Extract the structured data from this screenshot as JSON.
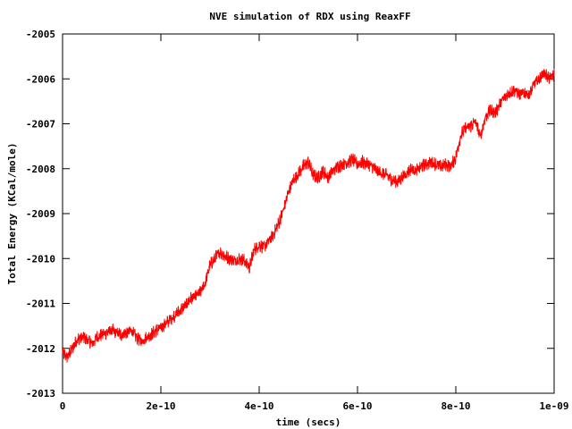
{
  "chart_data": {
    "type": "line",
    "title": "NVE simulation of RDX using ReaxFF",
    "xlabel": "time (secs)",
    "ylabel": "Total Energy (KCal/mole)",
    "xlim": [
      0,
      1e-09
    ],
    "ylim": [
      -2013,
      -2005
    ],
    "x_ticks": [
      {
        "value": 0,
        "label": "0"
      },
      {
        "value": 2e-10,
        "label": "2e-10"
      },
      {
        "value": 4e-10,
        "label": "4e-10"
      },
      {
        "value": 6e-10,
        "label": "6e-10"
      },
      {
        "value": 8e-10,
        "label": "8e-10"
      },
      {
        "value": 1e-09,
        "label": "1e-09"
      }
    ],
    "y_ticks": [
      {
        "value": -2013,
        "label": "-2013"
      },
      {
        "value": -2012,
        "label": "-2012"
      },
      {
        "value": -2011,
        "label": "-2011"
      },
      {
        "value": -2010,
        "label": "-2010"
      },
      {
        "value": -2009,
        "label": "-2009"
      },
      {
        "value": -2008,
        "label": "-2008"
      },
      {
        "value": -2007,
        "label": "-2007"
      },
      {
        "value": -2006,
        "label": "-2006"
      },
      {
        "value": -2005,
        "label": "-2005"
      }
    ],
    "grid": false,
    "series": [
      {
        "color": "#ff0000",
        "noise_amplitude": 0.12,
        "x": [
          0,
          1e-11,
          2e-11,
          3e-11,
          4e-11,
          5e-11,
          6e-11,
          7e-11,
          8e-11,
          9e-11,
          1e-10,
          1.1e-10,
          1.2e-10,
          1.3e-10,
          1.4e-10,
          1.5e-10,
          1.6e-10,
          1.7e-10,
          1.8e-10,
          1.9e-10,
          2e-10,
          2.1e-10,
          2.2e-10,
          2.3e-10,
          2.4e-10,
          2.5e-10,
          2.6e-10,
          2.7e-10,
          2.8e-10,
          2.9e-10,
          3e-10,
          3.1e-10,
          3.2e-10,
          3.3e-10,
          3.4e-10,
          3.5e-10,
          3.6e-10,
          3.7e-10,
          3.8e-10,
          3.9e-10,
          4e-10,
          4.1e-10,
          4.2e-10,
          4.3e-10,
          4.4e-10,
          4.5e-10,
          4.6e-10,
          4.7e-10,
          4.8e-10,
          4.9e-10,
          5e-10,
          5.1e-10,
          5.2e-10,
          5.3e-10,
          5.4e-10,
          5.5e-10,
          5.6e-10,
          5.7e-10,
          5.8e-10,
          5.9e-10,
          6e-10,
          6.1e-10,
          6.2e-10,
          6.3e-10,
          6.4e-10,
          6.5e-10,
          6.6e-10,
          6.7e-10,
          6.8e-10,
          6.9e-10,
          7e-10,
          7.1e-10,
          7.2e-10,
          7.3e-10,
          7.4e-10,
          7.5e-10,
          7.6e-10,
          7.7e-10,
          7.8e-10,
          7.9e-10,
          8e-10,
          8.1e-10,
          8.2e-10,
          8.3e-10,
          8.4e-10,
          8.5e-10,
          8.6e-10,
          8.7e-10,
          8.8e-10,
          8.9e-10,
          9e-10,
          9.1e-10,
          9.2e-10,
          9.3e-10,
          9.4e-10,
          9.5e-10,
          9.6e-10,
          9.7e-10,
          9.8e-10,
          9.9e-10,
          1e-09
        ],
        "y": [
          -2012.1,
          -2012.2,
          -2012.0,
          -2011.8,
          -2011.75,
          -2011.8,
          -2011.9,
          -2011.75,
          -2011.7,
          -2011.65,
          -2011.6,
          -2011.65,
          -2011.7,
          -2011.65,
          -2011.6,
          -2011.75,
          -2011.85,
          -2011.75,
          -2011.7,
          -2011.6,
          -2011.55,
          -2011.45,
          -2011.35,
          -2011.25,
          -2011.15,
          -2011.05,
          -2010.9,
          -2010.85,
          -2010.75,
          -2010.55,
          -2010.15,
          -2010.0,
          -2009.85,
          -2009.95,
          -2010.0,
          -2010.05,
          -2010.0,
          -2010.05,
          -2010.2,
          -2009.8,
          -2009.7,
          -2009.75,
          -2009.6,
          -2009.45,
          -2009.2,
          -2008.9,
          -2008.5,
          -2008.25,
          -2008.1,
          -2007.95,
          -2007.85,
          -2008.15,
          -2008.2,
          -2008.05,
          -2008.2,
          -2008.05,
          -2007.95,
          -2007.9,
          -2007.85,
          -2007.8,
          -2007.9,
          -2007.85,
          -2007.9,
          -2007.95,
          -2008.05,
          -2008.1,
          -2008.15,
          -2008.25,
          -2008.3,
          -2008.2,
          -2008.1,
          -2008.0,
          -2008.05,
          -2007.95,
          -2007.9,
          -2007.85,
          -2007.9,
          -2007.95,
          -2007.9,
          -2007.95,
          -2007.75,
          -2007.25,
          -2007.1,
          -2007.05,
          -2006.95,
          -2007.3,
          -2006.85,
          -2006.7,
          -2006.75,
          -2006.55,
          -2006.4,
          -2006.3,
          -2006.25,
          -2006.35,
          -2006.3,
          -2006.35,
          -2006.1,
          -2006.0,
          -2005.85,
          -2006.0,
          -2005.9
        ]
      }
    ]
  }
}
